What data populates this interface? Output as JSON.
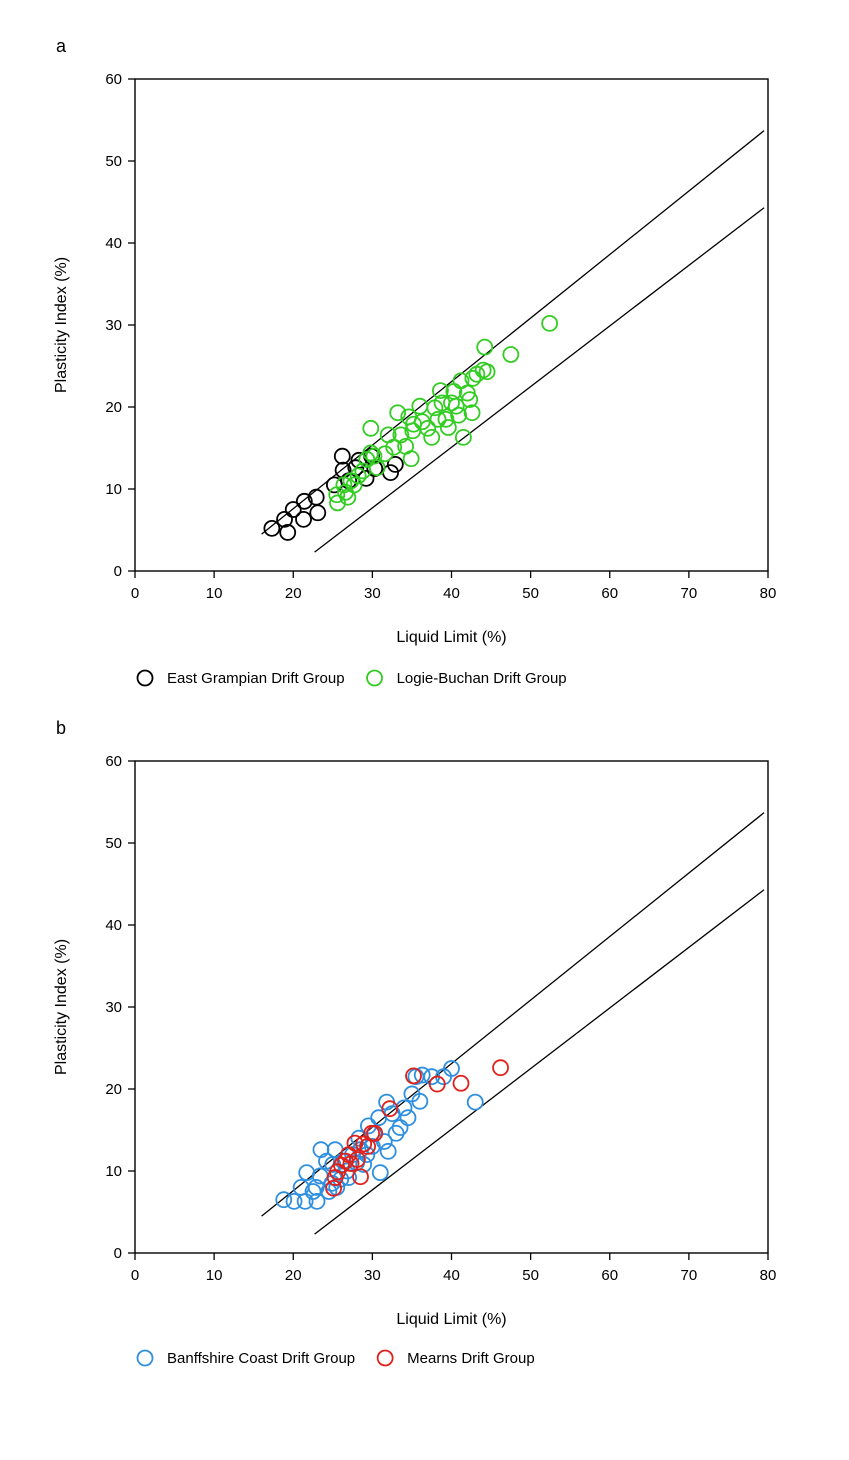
{
  "chart_data": [
    {
      "type": "scatter",
      "panel_label": "a",
      "xlabel": "Liquid Limit (%)",
      "ylabel": "Plasticity Index (%)",
      "xlim": [
        0,
        80
      ],
      "ylim": [
        0,
        60
      ],
      "xticks": [
        0,
        10,
        20,
        30,
        40,
        50,
        60,
        70,
        80
      ],
      "yticks": [
        0,
        10,
        20,
        30,
        40,
        50,
        60
      ],
      "grid": false,
      "legend_position": "bottom",
      "reference_lines": [
        {
          "x": [
            16,
            79.5
          ],
          "y": [
            4.5,
            53.7
          ]
        },
        {
          "x": [
            22.7,
            79.5
          ],
          "y": [
            2.3,
            44.3
          ]
        }
      ],
      "series": [
        {
          "name": "East Grampian Drift Group",
          "color": "#000000",
          "points": [
            [
              17.3,
              5.2
            ],
            [
              19.3,
              4.7
            ],
            [
              18.9,
              6.3
            ],
            [
              20.0,
              7.5
            ],
            [
              21.4,
              8.5
            ],
            [
              21.3,
              6.3
            ],
            [
              22.9,
              9.0
            ],
            [
              23.1,
              7.1
            ],
            [
              25.2,
              10.5
            ],
            [
              26.2,
              14.0
            ],
            [
              26.3,
              12.3
            ],
            [
              27.0,
              11.0
            ],
            [
              27.9,
              12.6
            ],
            [
              28.3,
              13.5
            ],
            [
              29.2,
              11.3
            ],
            [
              29.9,
              14.0
            ],
            [
              30.3,
              12.5
            ],
            [
              32.3,
              12.0
            ],
            [
              32.9,
              13.0
            ]
          ]
        },
        {
          "name": "Logie-Buchan Drift Group",
          "color": "#33cc22",
          "points": [
            [
              25.6,
              8.3
            ],
            [
              25.5,
              9.3
            ],
            [
              26.6,
              9.6
            ],
            [
              26.9,
              9.0
            ],
            [
              26.4,
              10.5
            ],
            [
              27.3,
              11.0
            ],
            [
              27.7,
              10.5
            ],
            [
              28.2,
              11.6
            ],
            [
              28.8,
              12.2
            ],
            [
              29.3,
              13.6
            ],
            [
              29.8,
              14.4
            ],
            [
              29.8,
              17.4
            ],
            [
              30.2,
              14.0
            ],
            [
              30.6,
              12.6
            ],
            [
              31.6,
              14.3
            ],
            [
              32.0,
              16.6
            ],
            [
              32.7,
              15.1
            ],
            [
              33.2,
              19.3
            ],
            [
              33.6,
              16.6
            ],
            [
              34.2,
              15.2
            ],
            [
              34.6,
              18.8
            ],
            [
              34.9,
              13.7
            ],
            [
              35.1,
              17.1
            ],
            [
              35.2,
              17.9
            ],
            [
              36.0,
              20.1
            ],
            [
              36.3,
              18.2
            ],
            [
              37.0,
              17.4
            ],
            [
              37.5,
              16.3
            ],
            [
              37.9,
              19.9
            ],
            [
              38.3,
              18.5
            ],
            [
              38.6,
              22.0
            ],
            [
              38.8,
              20.5
            ],
            [
              39.3,
              18.5
            ],
            [
              39.6,
              17.5
            ],
            [
              40.0,
              20.5
            ],
            [
              40.3,
              21.9
            ],
            [
              40.6,
              20.1
            ],
            [
              40.9,
              19.0
            ],
            [
              41.2,
              23.2
            ],
            [
              41.5,
              16.3
            ],
            [
              42.0,
              21.7
            ],
            [
              42.3,
              20.9
            ],
            [
              42.6,
              19.3
            ],
            [
              42.7,
              23.5
            ],
            [
              43.2,
              24.0
            ],
            [
              44.0,
              24.5
            ],
            [
              44.2,
              27.3
            ],
            [
              44.5,
              24.3
            ],
            [
              47.5,
              26.4
            ],
            [
              52.4,
              30.2
            ]
          ]
        }
      ]
    },
    {
      "type": "scatter",
      "panel_label": "b",
      "xlabel": "Liquid Limit (%)",
      "ylabel": "Plasticity Index (%)",
      "xlim": [
        0,
        80
      ],
      "ylim": [
        0,
        60
      ],
      "xticks": [
        0,
        10,
        20,
        30,
        40,
        50,
        60,
        70,
        80
      ],
      "yticks": [
        0,
        10,
        20,
        30,
        40,
        50,
        60
      ],
      "grid": false,
      "legend_position": "bottom",
      "reference_lines": [
        {
          "x": [
            16,
            79.5
          ],
          "y": [
            4.5,
            53.7
          ]
        },
        {
          "x": [
            22.7,
            79.5
          ],
          "y": [
            2.3,
            44.3
          ]
        }
      ],
      "series": [
        {
          "name": "Banffshire Coast Drift Group",
          "color": "#2f8fdf",
          "points": [
            [
              18.8,
              6.5
            ],
            [
              20.1,
              6.3
            ],
            [
              21.0,
              8.0
            ],
            [
              21.5,
              6.3
            ],
            [
              21.7,
              9.8
            ],
            [
              22.5,
              7.5
            ],
            [
              22.9,
              8.0
            ],
            [
              23.0,
              6.3
            ],
            [
              23.4,
              9.4
            ],
            [
              23.5,
              12.6
            ],
            [
              24.2,
              11.2
            ],
            [
              24.5,
              7.5
            ],
            [
              24.9,
              8.5
            ],
            [
              25.0,
              10.8
            ],
            [
              25.3,
              12.6
            ],
            [
              25.5,
              8.0
            ],
            [
              26.0,
              9.0
            ],
            [
              26.3,
              11.2
            ],
            [
              26.8,
              10.0
            ],
            [
              27.0,
              9.2
            ],
            [
              27.5,
              12.0
            ],
            [
              28.0,
              11.0
            ],
            [
              28.3,
              14.0
            ],
            [
              28.5,
              12.6
            ],
            [
              28.9,
              10.8
            ],
            [
              29.3,
              12.0
            ],
            [
              29.5,
              15.5
            ],
            [
              30.0,
              13.0
            ],
            [
              30.2,
              14.5
            ],
            [
              30.8,
              16.5
            ],
            [
              31.0,
              9.8
            ],
            [
              31.5,
              13.6
            ],
            [
              31.8,
              18.4
            ],
            [
              32.0,
              12.4
            ],
            [
              32.5,
              17.0
            ],
            [
              33.0,
              14.6
            ],
            [
              33.5,
              15.3
            ],
            [
              34.0,
              17.7
            ],
            [
              34.5,
              16.5
            ],
            [
              35.0,
              19.4
            ],
            [
              35.5,
              21.5
            ],
            [
              36.0,
              18.5
            ],
            [
              36.3,
              21.7
            ],
            [
              37.5,
              21.5
            ],
            [
              39.0,
              21.5
            ],
            [
              40.0,
              22.5
            ],
            [
              43.0,
              18.4
            ]
          ]
        },
        {
          "name": "Mearns Drift Group",
          "color": "#e0201a",
          "points": [
            [
              25.1,
              7.9
            ],
            [
              25.3,
              9.2
            ],
            [
              25.6,
              9.9
            ],
            [
              26.1,
              10.7
            ],
            [
              26.6,
              11.2
            ],
            [
              27.0,
              12.0
            ],
            [
              27.3,
              10.9
            ],
            [
              27.8,
              13.4
            ],
            [
              28.1,
              11.4
            ],
            [
              28.5,
              9.3
            ],
            [
              28.9,
              13.3
            ],
            [
              29.4,
              13.0
            ],
            [
              29.9,
              14.6
            ],
            [
              30.3,
              14.6
            ],
            [
              32.2,
              17.6
            ],
            [
              35.2,
              21.6
            ],
            [
              38.2,
              20.6
            ],
            [
              41.2,
              20.7
            ],
            [
              46.2,
              22.6
            ]
          ]
        }
      ]
    }
  ]
}
